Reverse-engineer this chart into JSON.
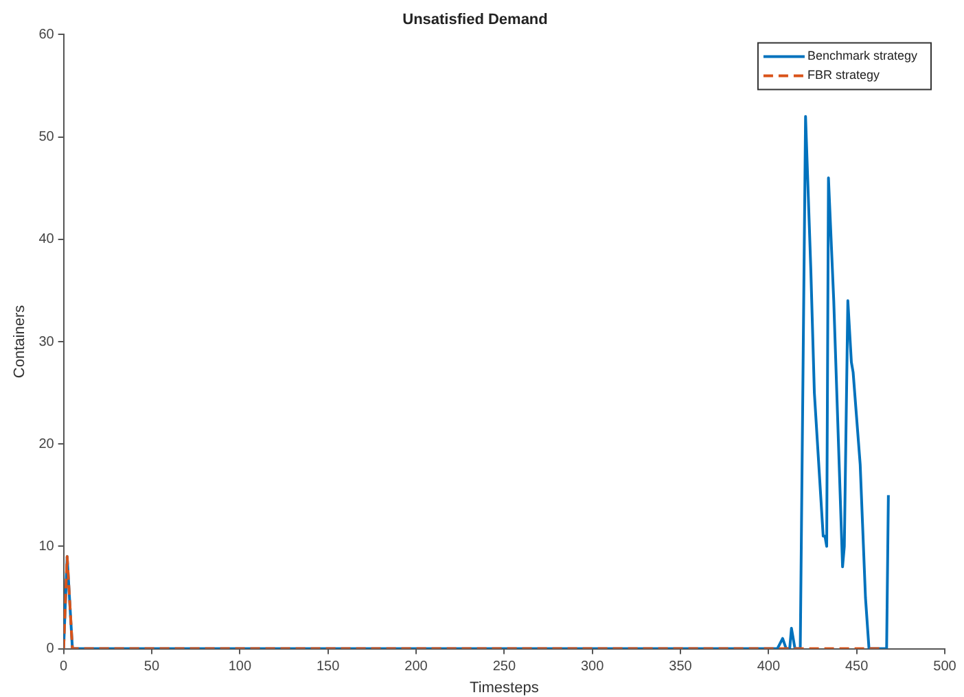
{
  "chart_data": {
    "type": "line",
    "title": "Unsatisfied Demand",
    "xlabel": "Timesteps",
    "ylabel": "Containers",
    "xlim": [
      0,
      500
    ],
    "xticks": [
      0,
      50,
      100,
      150,
      200,
      250,
      300,
      350,
      400,
      450,
      500
    ],
    "ylim": [
      0,
      60
    ],
    "yticks": [
      0,
      10,
      20,
      30,
      40,
      50,
      60
    ],
    "grid": false,
    "legend": "top right",
    "marker": "none",
    "series": [
      {
        "name": "Benchmark strategy",
        "color": "#0072bd",
        "line_style": "solid",
        "x": [
          0,
          2,
          5,
          405,
          408,
          410,
          412,
          413,
          415,
          418,
          421,
          424,
          426,
          431,
          432,
          433,
          434,
          437,
          442,
          443,
          445,
          447,
          448,
          452,
          455,
          457,
          467,
          468,
          468
        ],
        "values": [
          0,
          9,
          0,
          0,
          1,
          0,
          0,
          2,
          0,
          0,
          52,
          37,
          25,
          11,
          11,
          10,
          46,
          34,
          8,
          10,
          34,
          28,
          27,
          18,
          5,
          0,
          0,
          15,
          15
        ]
      },
      {
        "name": "FBR strategy",
        "color": "#d95319",
        "line_style": "dashed",
        "x": [
          0,
          2,
          5,
          465
        ],
        "values": [
          0,
          9,
          0,
          0
        ]
      }
    ]
  }
}
